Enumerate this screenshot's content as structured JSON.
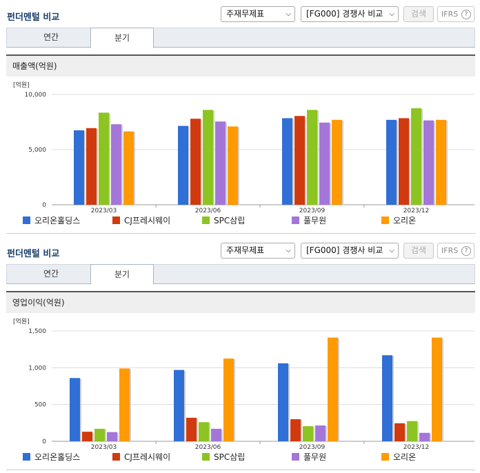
{
  "panels": [
    {
      "title": "펀더멘털 비교",
      "statement_select": "주재무제표",
      "compare_select": "[FG000] 경쟁사 비교",
      "search_label": "검색",
      "ifrs_label": "IFRS",
      "ifrs_help": "?",
      "tabs": [
        {
          "label": "연간"
        },
        {
          "label": "분기"
        }
      ],
      "active_tab": 1,
      "section_title": "매출액(억원)"
    },
    {
      "title": "펀더멘털 비교",
      "statement_select": "주재무제표",
      "compare_select": "[FG000] 경쟁사 비교",
      "search_label": "검색",
      "ifrs_label": "IFRS",
      "ifrs_help": "?",
      "tabs": [
        {
          "label": "연간"
        },
        {
          "label": "분기"
        }
      ],
      "active_tab": 1,
      "section_title": "영업이익(억원)"
    }
  ],
  "colors": {
    "series": [
      "#2f6fd6",
      "#d13a0e",
      "#8cc421",
      "#a476d8",
      "#ff9a00"
    ],
    "title": "#1a3e6d"
  },
  "chart_data": [
    {
      "type": "bar",
      "unit_label": "[억원]",
      "categories": [
        "2023/03",
        "2023/06",
        "2023/09",
        "2023/12"
      ],
      "yticks": [
        0,
        5000,
        10000
      ],
      "ytick_labels": [
        "0",
        "5,000",
        "10,000"
      ],
      "ylim": [
        0,
        10000
      ],
      "grid": true,
      "legend_position": "bottom",
      "series": [
        {
          "name": "오리온홀딩스",
          "values": [
            6750,
            7150,
            7850,
            7700
          ]
        },
        {
          "name": "CJ프레시웨이",
          "values": [
            6950,
            7800,
            8050,
            7850
          ]
        },
        {
          "name": "SPC삼립",
          "values": [
            8350,
            8600,
            8600,
            8750
          ]
        },
        {
          "name": "풀무원",
          "values": [
            7300,
            7550,
            7450,
            7650
          ]
        },
        {
          "name": "오리온",
          "values": [
            6650,
            7100,
            7700,
            7700
          ]
        }
      ]
    },
    {
      "type": "bar",
      "unit_label": "[억원]",
      "categories": [
        "2023/03",
        "2023/06",
        "2023/09",
        "2023/12"
      ],
      "yticks": [
        0,
        500,
        1000,
        1500
      ],
      "ytick_labels": [
        "0",
        "500",
        "1,000",
        "1,500"
      ],
      "ylim": [
        0,
        1500
      ],
      "grid": true,
      "legend_position": "bottom",
      "series": [
        {
          "name": "오리온홀딩스",
          "values": [
            860,
            970,
            1060,
            1170
          ]
        },
        {
          "name": "CJ프레시웨이",
          "values": [
            130,
            320,
            300,
            245
          ]
        },
        {
          "name": "SPC삼립",
          "values": [
            170,
            260,
            205,
            275
          ]
        },
        {
          "name": "풀무원",
          "values": [
            125,
            170,
            215,
            115
          ]
        },
        {
          "name": "오리온",
          "values": [
            990,
            1125,
            1410,
            1410
          ]
        }
      ]
    }
  ]
}
